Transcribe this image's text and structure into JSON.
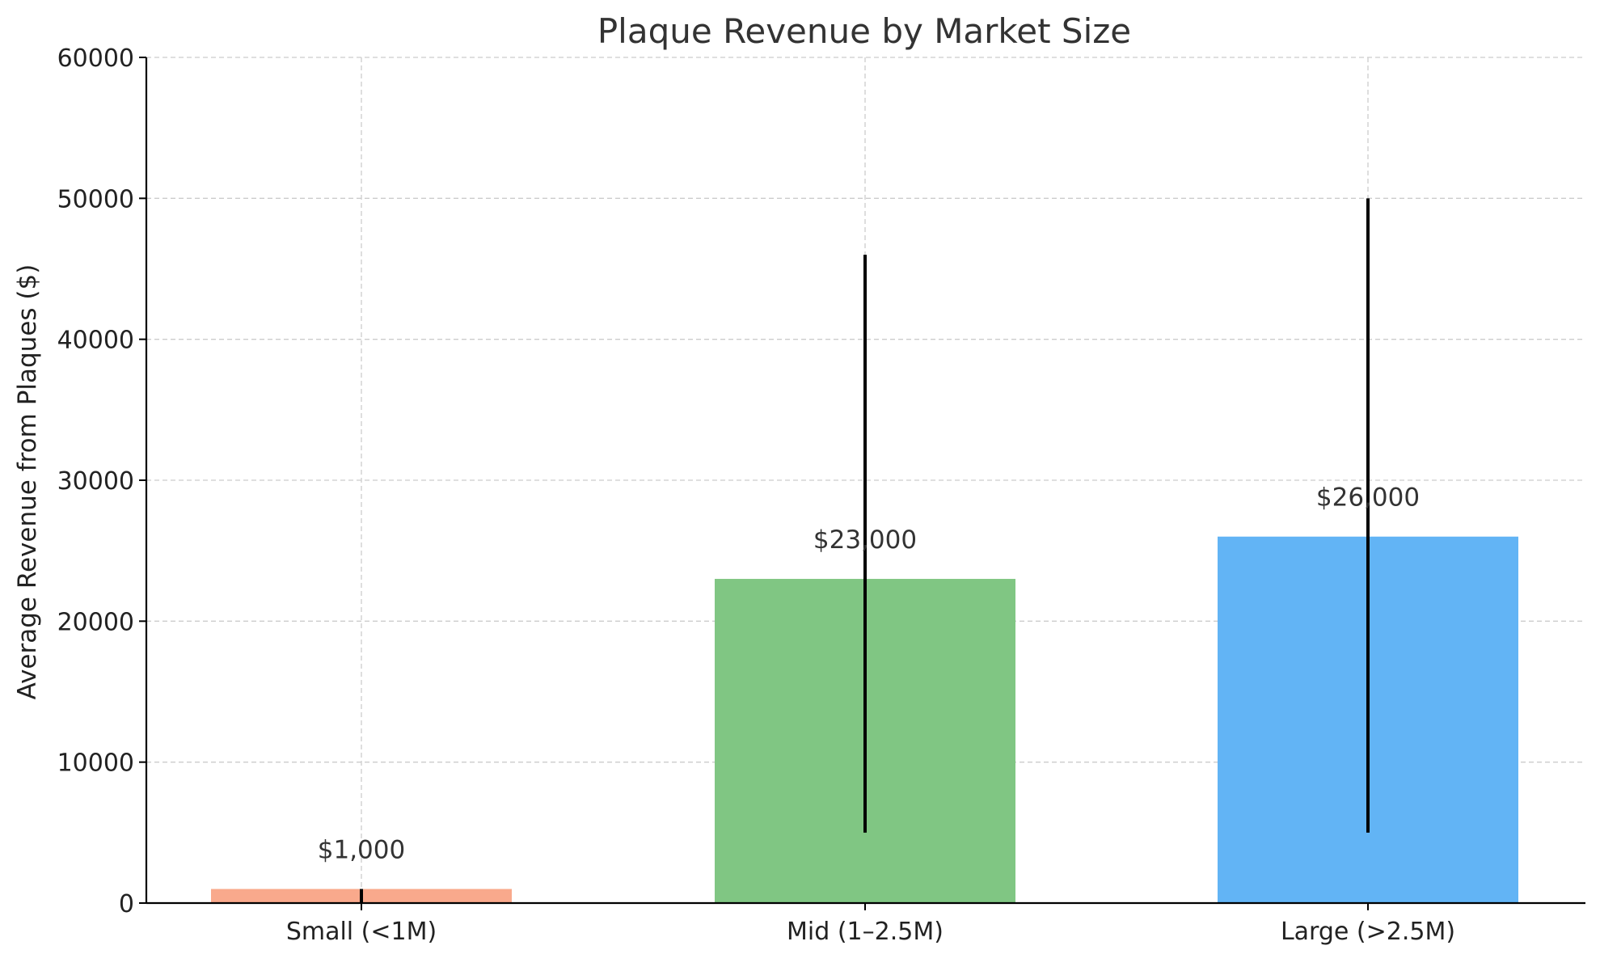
{
  "chart_data": {
    "type": "bar",
    "title": "Plaque Revenue by Market Size",
    "xlabel": "",
    "ylabel": "Average Revenue from Plaques ($)",
    "categories": [
      "Small (<1M)",
      "Mid (1–2.5M)",
      "Large (>2.5M)"
    ],
    "values": [
      1000,
      23000,
      26000
    ],
    "data_labels": [
      "$1,000",
      "$23,000",
      "$26,000"
    ],
    "error_ranges": [
      [
        0,
        1000
      ],
      [
        5000,
        46000
      ],
      [
        5000,
        50000
      ]
    ],
    "ylim": [
      0,
      60000
    ],
    "yticks": [
      0,
      10000,
      20000,
      30000,
      40000,
      50000,
      60000
    ],
    "ytick_labels": [
      "0",
      "10000",
      "20000",
      "30000",
      "40000",
      "50000",
      "60000"
    ],
    "grid": true,
    "legend": "none",
    "colors": [
      "#f9a98c",
      "#80c683",
      "#62b4f5"
    ],
    "error_color": "#000000",
    "grid_color": "#cccccc"
  }
}
